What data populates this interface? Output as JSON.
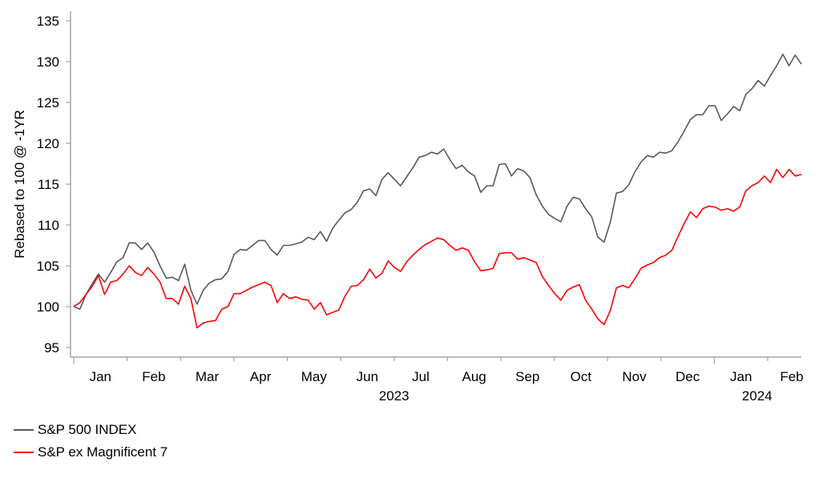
{
  "chart_data": {
    "type": "line",
    "title": "",
    "xlabel": "",
    "ylabel": "Rebased to 100 @ -1YR",
    "x_units": "months since Jan 2023",
    "xlim": [
      0,
      13.63
    ],
    "ylim": [
      95,
      135
    ],
    "yticks": [
      95,
      100,
      105,
      110,
      115,
      120,
      125,
      130,
      135
    ],
    "month_labels": [
      "Jan",
      "Feb",
      "Mar",
      "Apr",
      "May",
      "Jun",
      "Jul",
      "Aug",
      "Sep",
      "Oct",
      "Nov",
      "Dec",
      "Jan",
      "Feb"
    ],
    "year_labels": [
      {
        "label": "2023",
        "month": 6.0
      },
      {
        "label": "2024",
        "month": 12.8
      }
    ],
    "grid": false,
    "legend_position": "bottom-left",
    "series": [
      {
        "name": "S&P 500 INDEX",
        "color": "#595959",
        "values": [
          100,
          99.7,
          101.5,
          102.8,
          104,
          103,
          104.2,
          105.5,
          106,
          107.8,
          107.8,
          107,
          107.8,
          106.7,
          105,
          103.5,
          103.6,
          103.2,
          105.2,
          102,
          100.3,
          102,
          102.9,
          103.3,
          103.4,
          104.3,
          106.4,
          107,
          106.9,
          107.5,
          108.1,
          108.1,
          107,
          106.3,
          107.5,
          107.5,
          107.7,
          107.9,
          108.5,
          108.2,
          109.2,
          108,
          109.6,
          110.6,
          111.5,
          111.9,
          112.8,
          114.2,
          114.4,
          113.6,
          115.6,
          116.4,
          115.6,
          114.8,
          115.9,
          117,
          118.3,
          118.5,
          118.9,
          118.7,
          119.3,
          118,
          116.9,
          117.3,
          116.5,
          116,
          114,
          114.8,
          114.8,
          117.4,
          117.5,
          116,
          116.9,
          116.6,
          115.8,
          113.7,
          112.3,
          111.3,
          110.8,
          110.4,
          112.3,
          113.4,
          113.2,
          112,
          111,
          108.5,
          107.9,
          110.3,
          113.9,
          114.1,
          114.9,
          116.5,
          117.7,
          118.5,
          118.3,
          118.9,
          118.8,
          119.1,
          120.2,
          121.5,
          122.9,
          123.5,
          123.5,
          124.6,
          124.6,
          122.8,
          123.6,
          124.5,
          124,
          126,
          126.7,
          127.7,
          127,
          128.3,
          129.5,
          130.9,
          129.5,
          130.8,
          129.7
        ]
      },
      {
        "name": "S&P ex Magnificent 7",
        "color": "#ff0000",
        "values": [
          100,
          100.5,
          101.5,
          102.5,
          103.8,
          101.5,
          103,
          103.2,
          104,
          105,
          104.2,
          103.8,
          104.8,
          104,
          103,
          101,
          101,
          100.3,
          102.5,
          101,
          97.4,
          98,
          98.2,
          98.3,
          99.7,
          100,
          101.6,
          101.6,
          102,
          102.4,
          102.7,
          103,
          102.6,
          100.5,
          101.6,
          101,
          101.2,
          100.9,
          100.8,
          99.7,
          100.5,
          99,
          99.3,
          99.6,
          101.3,
          102.5,
          102.6,
          103.3,
          104.6,
          103.5,
          104.1,
          105.6,
          104.8,
          104.3,
          105.5,
          106.3,
          107,
          107.6,
          108,
          108.4,
          108.2,
          107.5,
          106.9,
          107.2,
          106.9,
          105.5,
          104.4,
          104.5,
          104.7,
          106.5,
          106.6,
          106.6,
          105.8,
          106,
          105.7,
          105.4,
          103.7,
          102.6,
          101.6,
          100.8,
          102,
          102.4,
          102.7,
          100.8,
          99.7,
          98.5,
          97.8,
          99.5,
          102.3,
          102.6,
          102.3,
          103.4,
          104.7,
          105.1,
          105.4,
          106,
          106.3,
          106.9,
          108.6,
          110.2,
          111.6,
          110.9,
          112,
          112.3,
          112.2,
          111.8,
          112,
          111.7,
          112.2,
          114.2,
          114.8,
          115.2,
          116,
          115.2,
          116.8,
          115.8,
          116.8,
          116,
          116.2
        ]
      }
    ]
  },
  "colors": {
    "axis": "#a6a6a6"
  }
}
